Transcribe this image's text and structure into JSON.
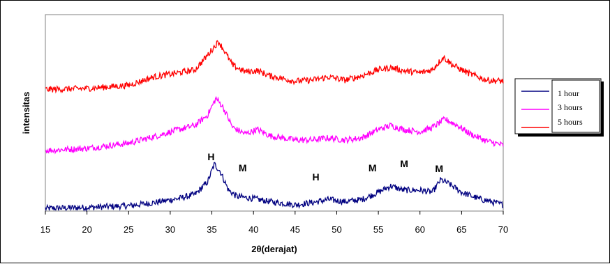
{
  "chart_data": {
    "type": "line",
    "title": "",
    "xlabel": "2θ(derajat)",
    "ylabel": "intensitas",
    "xlim": [
      15,
      70
    ],
    "x_ticks": [
      15,
      20,
      25,
      30,
      35,
      40,
      45,
      50,
      55,
      60,
      65,
      70
    ],
    "grid": false,
    "legend_position": "right",
    "series": [
      {
        "name": "1 hour",
        "color": "#000080",
        "points": [
          [
            15,
            0.5
          ],
          [
            20,
            1.5
          ],
          [
            25,
            3
          ],
          [
            28,
            6
          ],
          [
            31,
            10
          ],
          [
            33,
            14
          ],
          [
            34.5,
            26
          ],
          [
            35.3,
            43
          ],
          [
            36,
            36
          ],
          [
            37,
            18
          ],
          [
            38,
            12
          ],
          [
            40,
            10
          ],
          [
            42,
            7
          ],
          [
            45,
            4
          ],
          [
            47,
            6
          ],
          [
            49,
            9
          ],
          [
            51,
            7
          ],
          [
            53,
            9
          ],
          [
            55,
            16
          ],
          [
            56.5,
            22
          ],
          [
            58,
            18
          ],
          [
            60,
            18
          ],
          [
            61.5,
            16
          ],
          [
            62.5,
            28
          ],
          [
            63.5,
            24
          ],
          [
            65,
            16
          ],
          [
            67,
            10
          ],
          [
            70,
            4
          ]
        ]
      },
      {
        "name": "3 hours",
        "color": "#FF00FF",
        "points": [
          [
            15,
            2
          ],
          [
            20,
            4
          ],
          [
            25,
            9
          ],
          [
            28,
            15
          ],
          [
            31,
            22
          ],
          [
            33,
            26
          ],
          [
            34.5,
            36
          ],
          [
            35.5,
            52
          ],
          [
            36.3,
            44
          ],
          [
            37.5,
            24
          ],
          [
            39,
            18
          ],
          [
            40.5,
            22
          ],
          [
            42,
            16
          ],
          [
            45,
            12
          ],
          [
            47,
            12
          ],
          [
            49,
            14
          ],
          [
            51,
            12
          ],
          [
            53,
            14
          ],
          [
            55,
            22
          ],
          [
            56.5,
            26
          ],
          [
            58,
            22
          ],
          [
            60,
            20
          ],
          [
            61.5,
            24
          ],
          [
            63,
            32
          ],
          [
            64.5,
            26
          ],
          [
            66,
            18
          ],
          [
            68,
            11
          ],
          [
            70,
            7
          ]
        ]
      },
      {
        "name": "5 hours",
        "color": "#FF0000",
        "points": [
          [
            15,
            1
          ],
          [
            20,
            2
          ],
          [
            25,
            5
          ],
          [
            28,
            13
          ],
          [
            31,
            17
          ],
          [
            33,
            20
          ],
          [
            34.5,
            34
          ],
          [
            35.8,
            47
          ],
          [
            36.5,
            38
          ],
          [
            37.5,
            24
          ],
          [
            39,
            18
          ],
          [
            40.5,
            19
          ],
          [
            42,
            14
          ],
          [
            45,
            9
          ],
          [
            47,
            10
          ],
          [
            49,
            13
          ],
          [
            51,
            10
          ],
          [
            53,
            14
          ],
          [
            55,
            20
          ],
          [
            56.5,
            22
          ],
          [
            58,
            19
          ],
          [
            60,
            17
          ],
          [
            61.5,
            20
          ],
          [
            62.8,
            32
          ],
          [
            64,
            24
          ],
          [
            66,
            16
          ],
          [
            68,
            10
          ],
          [
            70,
            9
          ]
        ]
      }
    ],
    "annotations": [
      {
        "text": "H",
        "x": 34.9
      },
      {
        "text": "M",
        "x": 38.7
      },
      {
        "text": "H",
        "x": 47.5
      },
      {
        "text": "M",
        "x": 54.3
      },
      {
        "text": "M",
        "x": 58.1
      },
      {
        "text": "M",
        "x": 62.3
      }
    ]
  }
}
